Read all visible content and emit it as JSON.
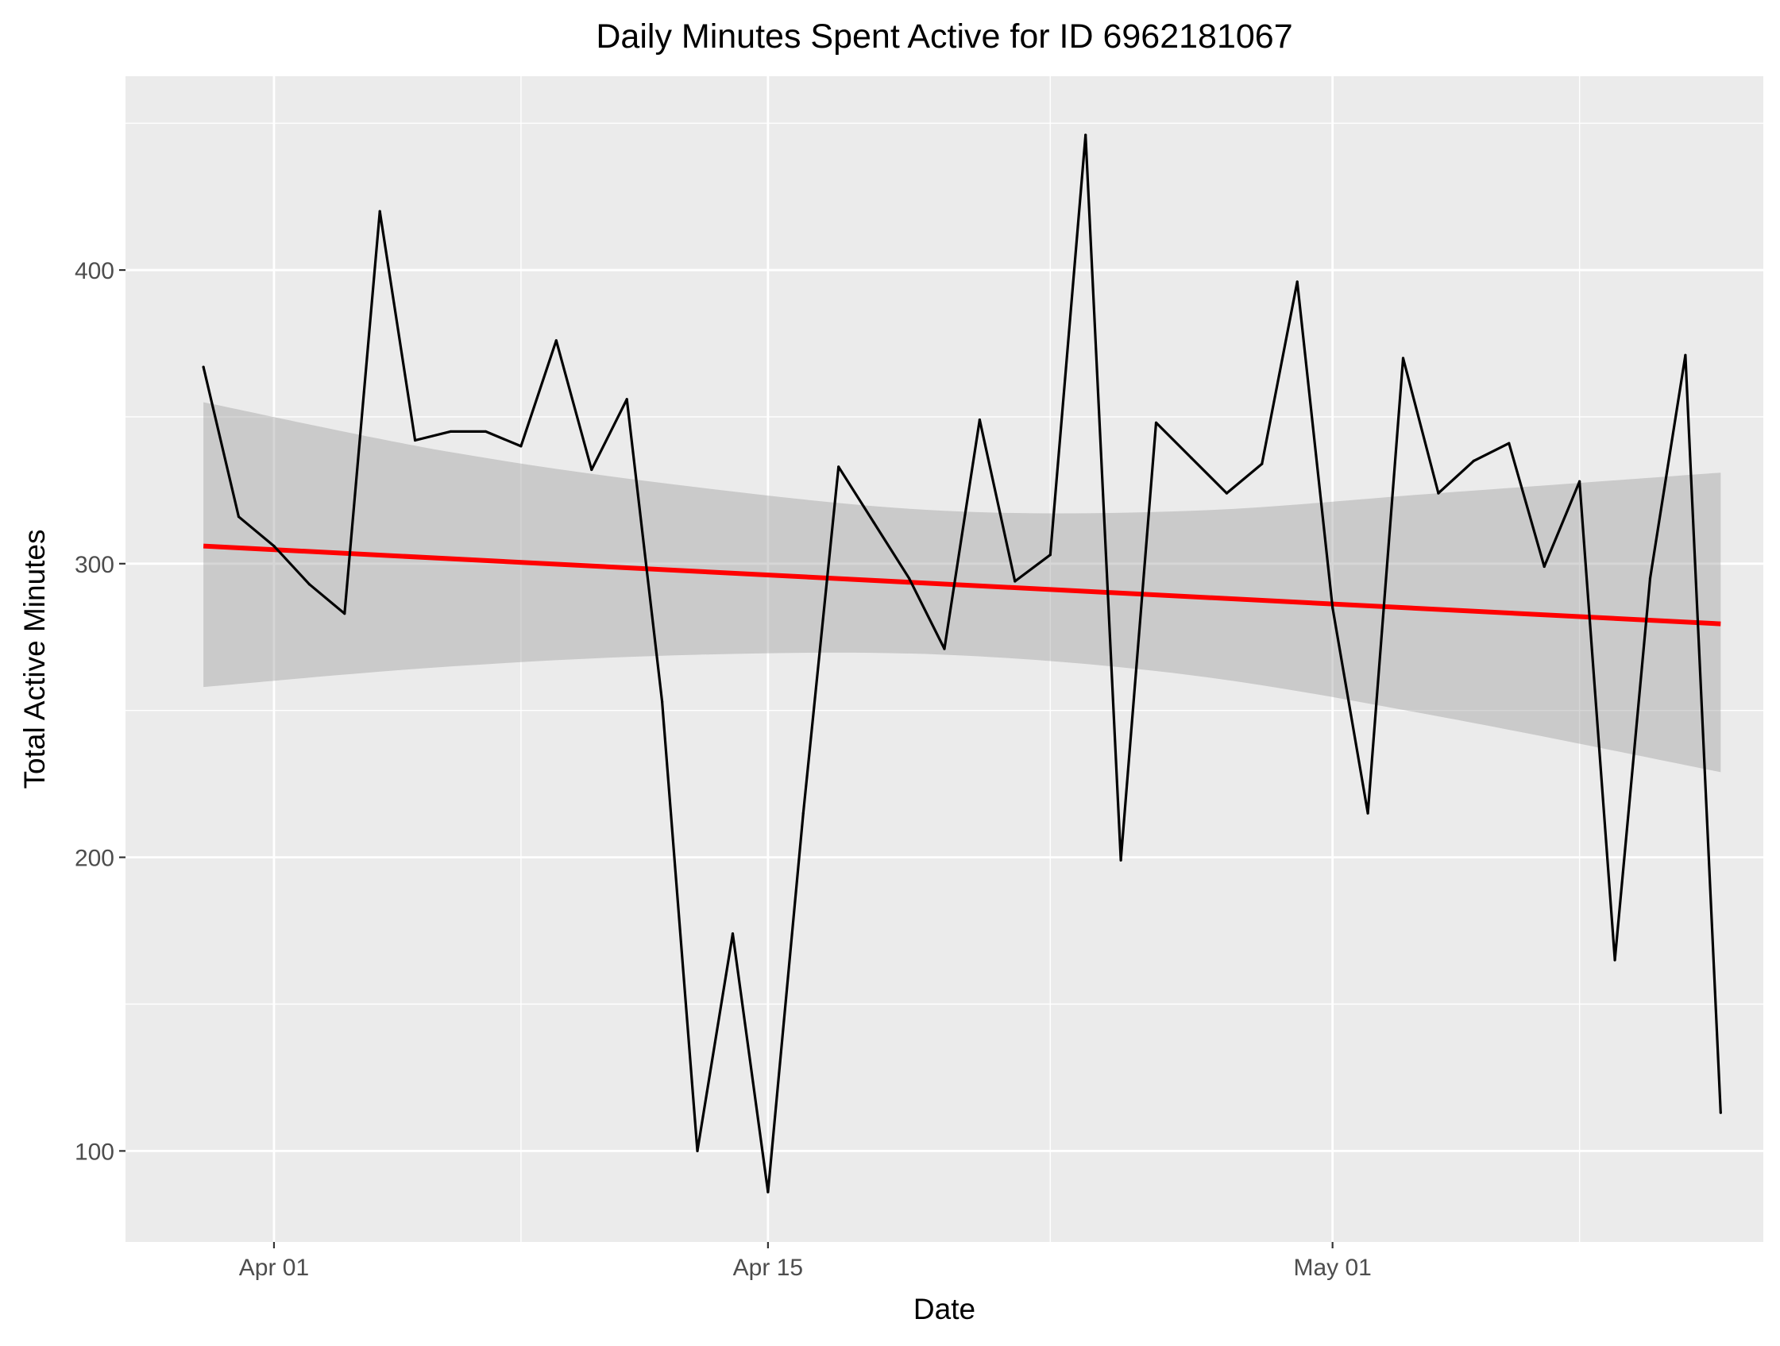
{
  "chart_data": {
    "type": "line",
    "title": "Daily Minutes Spent Active for ID 6962181067",
    "xlabel": "Date",
    "ylabel": "Total Active Minutes",
    "x_tick_labels": [
      {
        "date": "2016-04-01",
        "label": "Apr 01"
      },
      {
        "date": "2016-04-15",
        "label": "Apr 15"
      },
      {
        "date": "2016-05-01",
        "label": "May 01"
      }
    ],
    "y_ticks": [
      100,
      200,
      300,
      400
    ],
    "xlim": [
      "2016-03-27T19:00",
      "2016-05-13T05:00"
    ],
    "ylim": [
      69,
      466
    ],
    "grid": true,
    "colors": {
      "panel": "#EBEBEB",
      "grid": "#FFFFFF",
      "line": "#000000",
      "trend": "#FF0000",
      "ribbon": "#999999",
      "axis_text": "#4D4D4D",
      "title_text": "#000000"
    },
    "series": [
      {
        "type": "line",
        "x": [
          "2016-03-30",
          "2016-03-31",
          "2016-04-01",
          "2016-04-02",
          "2016-04-03",
          "2016-04-04",
          "2016-04-05",
          "2016-04-06",
          "2016-04-07",
          "2016-04-08",
          "2016-04-09",
          "2016-04-10",
          "2016-04-11",
          "2016-04-12",
          "2016-04-13",
          "2016-04-14",
          "2016-04-15",
          "2016-04-16",
          "2016-04-17",
          "2016-04-18",
          "2016-04-19",
          "2016-04-20",
          "2016-04-21",
          "2016-04-22",
          "2016-04-23",
          "2016-04-24",
          "2016-04-25",
          "2016-04-26",
          "2016-04-27",
          "2016-04-28",
          "2016-04-29",
          "2016-04-30",
          "2016-05-01",
          "2016-05-02",
          "2016-05-03",
          "2016-05-04",
          "2016-05-05",
          "2016-05-06",
          "2016-05-07",
          "2016-05-08",
          "2016-05-09",
          "2016-05-10",
          "2016-05-11",
          "2016-05-12"
        ],
        "values": [
          367,
          316,
          306,
          293,
          283,
          420,
          342,
          345,
          345,
          340,
          376,
          332,
          356,
          253,
          100,
          174,
          86,
          215,
          333,
          314,
          295,
          271,
          349,
          294,
          303,
          446,
          199,
          348,
          336,
          324,
          334,
          396,
          285,
          215,
          370,
          324,
          335,
          341,
          299,
          328,
          165,
          295,
          371,
          113
        ]
      },
      {
        "type": "linear-trend",
        "x": [
          "2016-03-30",
          "2016-05-12"
        ],
        "values": [
          306,
          279.5
        ]
      },
      {
        "type": "confidence-band",
        "x": [
          "2016-03-30",
          "2016-04-06",
          "2016-04-13",
          "2016-04-20",
          "2016-04-27",
          "2016-05-04",
          "2016-05-12"
        ],
        "lower": [
          258,
          265,
          269,
          269,
          262,
          248,
          229
        ],
        "upper": [
          355,
          338,
          326,
          318,
          318,
          324,
          331
        ]
      }
    ],
    "legend": "none"
  }
}
